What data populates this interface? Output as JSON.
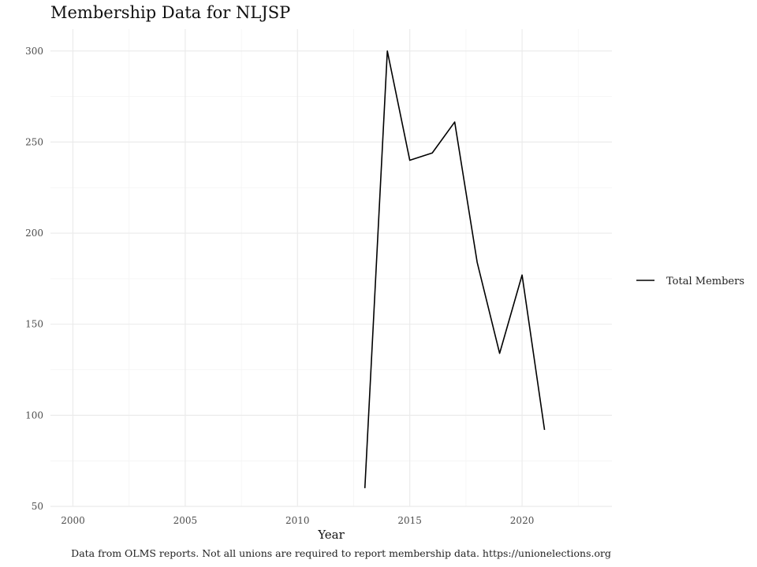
{
  "chart_data": {
    "type": "line",
    "title": "Membership Data for NLJSP",
    "xlabel": "Year",
    "ylabel": "",
    "caption": "Data from OLMS reports. Not all unions are required to report membership data. https://unionelections.org",
    "xlim": [
      1999,
      2024
    ],
    "ylim": [
      50,
      312
    ],
    "x_ticks": [
      2000,
      2005,
      2010,
      2015,
      2020
    ],
    "y_ticks": [
      50,
      100,
      150,
      200,
      250,
      300
    ],
    "grid": true,
    "legend_position": "right",
    "series": [
      {
        "name": "Total Members",
        "color": "#000000",
        "x": [
          2013,
          2014,
          2015,
          2016,
          2017,
          2018,
          2019,
          2020,
          2021
        ],
        "values": [
          60,
          300,
          240,
          244,
          261,
          184,
          134,
          177,
          92
        ]
      }
    ]
  }
}
